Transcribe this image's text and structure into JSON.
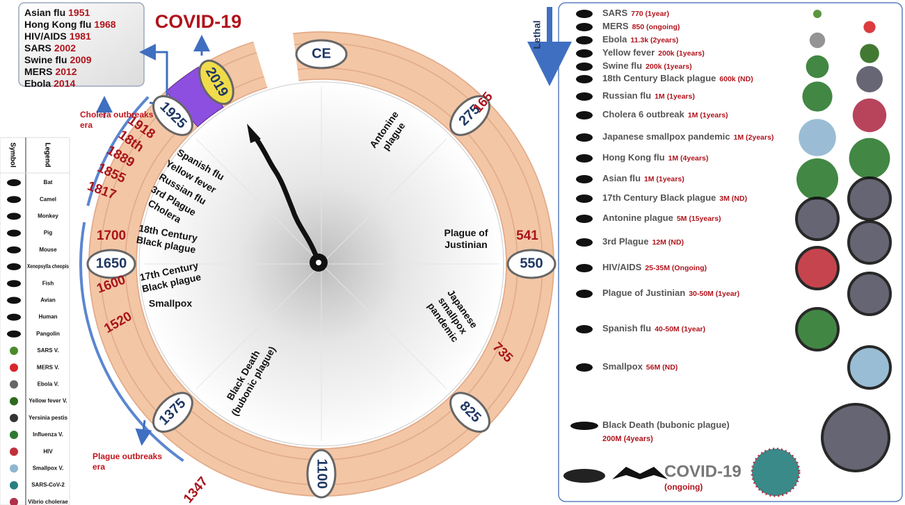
{
  "top_box": [
    {
      "name": "Asian flu",
      "year": "1951"
    },
    {
      "name": "Hong Kong flu",
      "year": "1968"
    },
    {
      "name": "HIV/AIDS",
      "year": "1981"
    },
    {
      "name": "SARS",
      "year": "2002"
    },
    {
      "name": "Swine flu",
      "year": "2009"
    },
    {
      "name": "MERS",
      "year": "2012"
    },
    {
      "name": "Ebola",
      "year": "2014"
    }
  ],
  "title": "COVID-19",
  "era_labels": {
    "cholera": [
      "Cholera outbreaks",
      "era"
    ],
    "plague": [
      "Plague outbreaks",
      "era"
    ]
  },
  "legend": {
    "headers": [
      "Symbol",
      "Legend"
    ],
    "items": [
      "Bat",
      "Camel",
      "Monkey",
      "Pig",
      "Mouse",
      "Xenopsylla cheopis",
      "Fish",
      "Avian",
      "Human",
      "Pangolin",
      "SARS V.",
      "MERS V.",
      "Ebola V.",
      "Yellow fever V.",
      "Yersinia pestis",
      "Influenza V.",
      "HIV",
      "Smallpox V.",
      "SARS-CoV-2",
      "Vibrio cholerae"
    ]
  },
  "ring_years": [
    "CE",
    "275",
    "550",
    "825",
    "1100",
    "1375",
    "1650",
    "1925",
    "2019"
  ],
  "ring_events": [
    "165",
    "541",
    "735",
    "1347",
    "1520",
    "1600",
    "1700",
    "1817",
    "1855",
    "1889",
    "18th",
    "1918"
  ],
  "clock_labels": [
    [
      "Antonine",
      "plague"
    ],
    [
      "Plague of",
      "Justinian"
    ],
    [
      "Japanese",
      "smallpox",
      "pandemic"
    ],
    [
      "Black Death",
      "(bubonic plague)"
    ],
    [
      "Smallpox"
    ],
    [
      "17th Century",
      "Black plague"
    ],
    [
      "18th Century",
      "Black plague"
    ],
    [
      "Cholera"
    ],
    [
      "3rd Plague"
    ],
    [
      "Russian flu"
    ],
    [
      "Yellow fever"
    ],
    [
      "Spanish flu"
    ]
  ],
  "lethal": "Lethal",
  "lethal_list": [
    {
      "name": "SARS",
      "toll": "770 (1year)"
    },
    {
      "name": "MERS",
      "toll": "850 (ongoing)"
    },
    {
      "name": "Ebola",
      "toll": "11.3k (2years)"
    },
    {
      "name": "Yellow fever",
      "toll": "200k (1years)"
    },
    {
      "name": "Swine flu",
      "toll": "200k (1years)"
    },
    {
      "name": "18th Century Black plague",
      "toll": "600k (ND)"
    },
    {
      "name": "Russian flu",
      "toll": "1M (1years)"
    },
    {
      "name": "Cholera 6 outbreak",
      "toll": "1M (1years)"
    },
    {
      "name": "Japanese smallpox pandemic",
      "toll": "1M (2years)"
    },
    {
      "name": "Hong Kong flu",
      "toll": "1M (4years)"
    },
    {
      "name": "Asian flu",
      "toll": "1M (1years)"
    },
    {
      "name": "17th Century Black plague",
      "toll": "3M (ND)"
    },
    {
      "name": "Antonine plague",
      "toll": "5M (15years)"
    },
    {
      "name": "3rd Plague",
      "toll": "12M (ND)"
    },
    {
      "name": "HIV/AIDS",
      "toll": "25-35M (Ongoing)"
    },
    {
      "name": "Plague of Justinian",
      "toll": "30-50M (1year)"
    },
    {
      "name": "Spanish flu",
      "toll": "40-50M (1year)"
    },
    {
      "name": "Smallpox",
      "toll": "56M (ND)"
    },
    {
      "name": "Black Death (bubonic plague)",
      "toll": "200M (4years)"
    }
  ],
  "covid": {
    "name": "COVID-19",
    "toll": "(ongoing)"
  }
}
